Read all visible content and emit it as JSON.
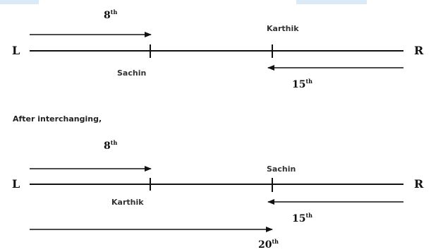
{
  "scene1": {
    "left_label": "L",
    "right_label": "R",
    "top_ord_num": "8",
    "top_ord_sup": "th",
    "upper_name": "Karthik",
    "lower_name": "Sachin",
    "bottom_ord_num": "15",
    "bottom_ord_sup": "th"
  },
  "caption": "After interchanging,",
  "scene2": {
    "left_label": "L",
    "right_label": "R",
    "top_ord_num": "8",
    "top_ord_sup": "th",
    "upper_name": "Sachin",
    "lower_name": "Karthik",
    "bottom_ord_num": "15",
    "bottom_ord_sup": "th",
    "extra_ord_num": "20",
    "extra_ord_sup": "th"
  }
}
